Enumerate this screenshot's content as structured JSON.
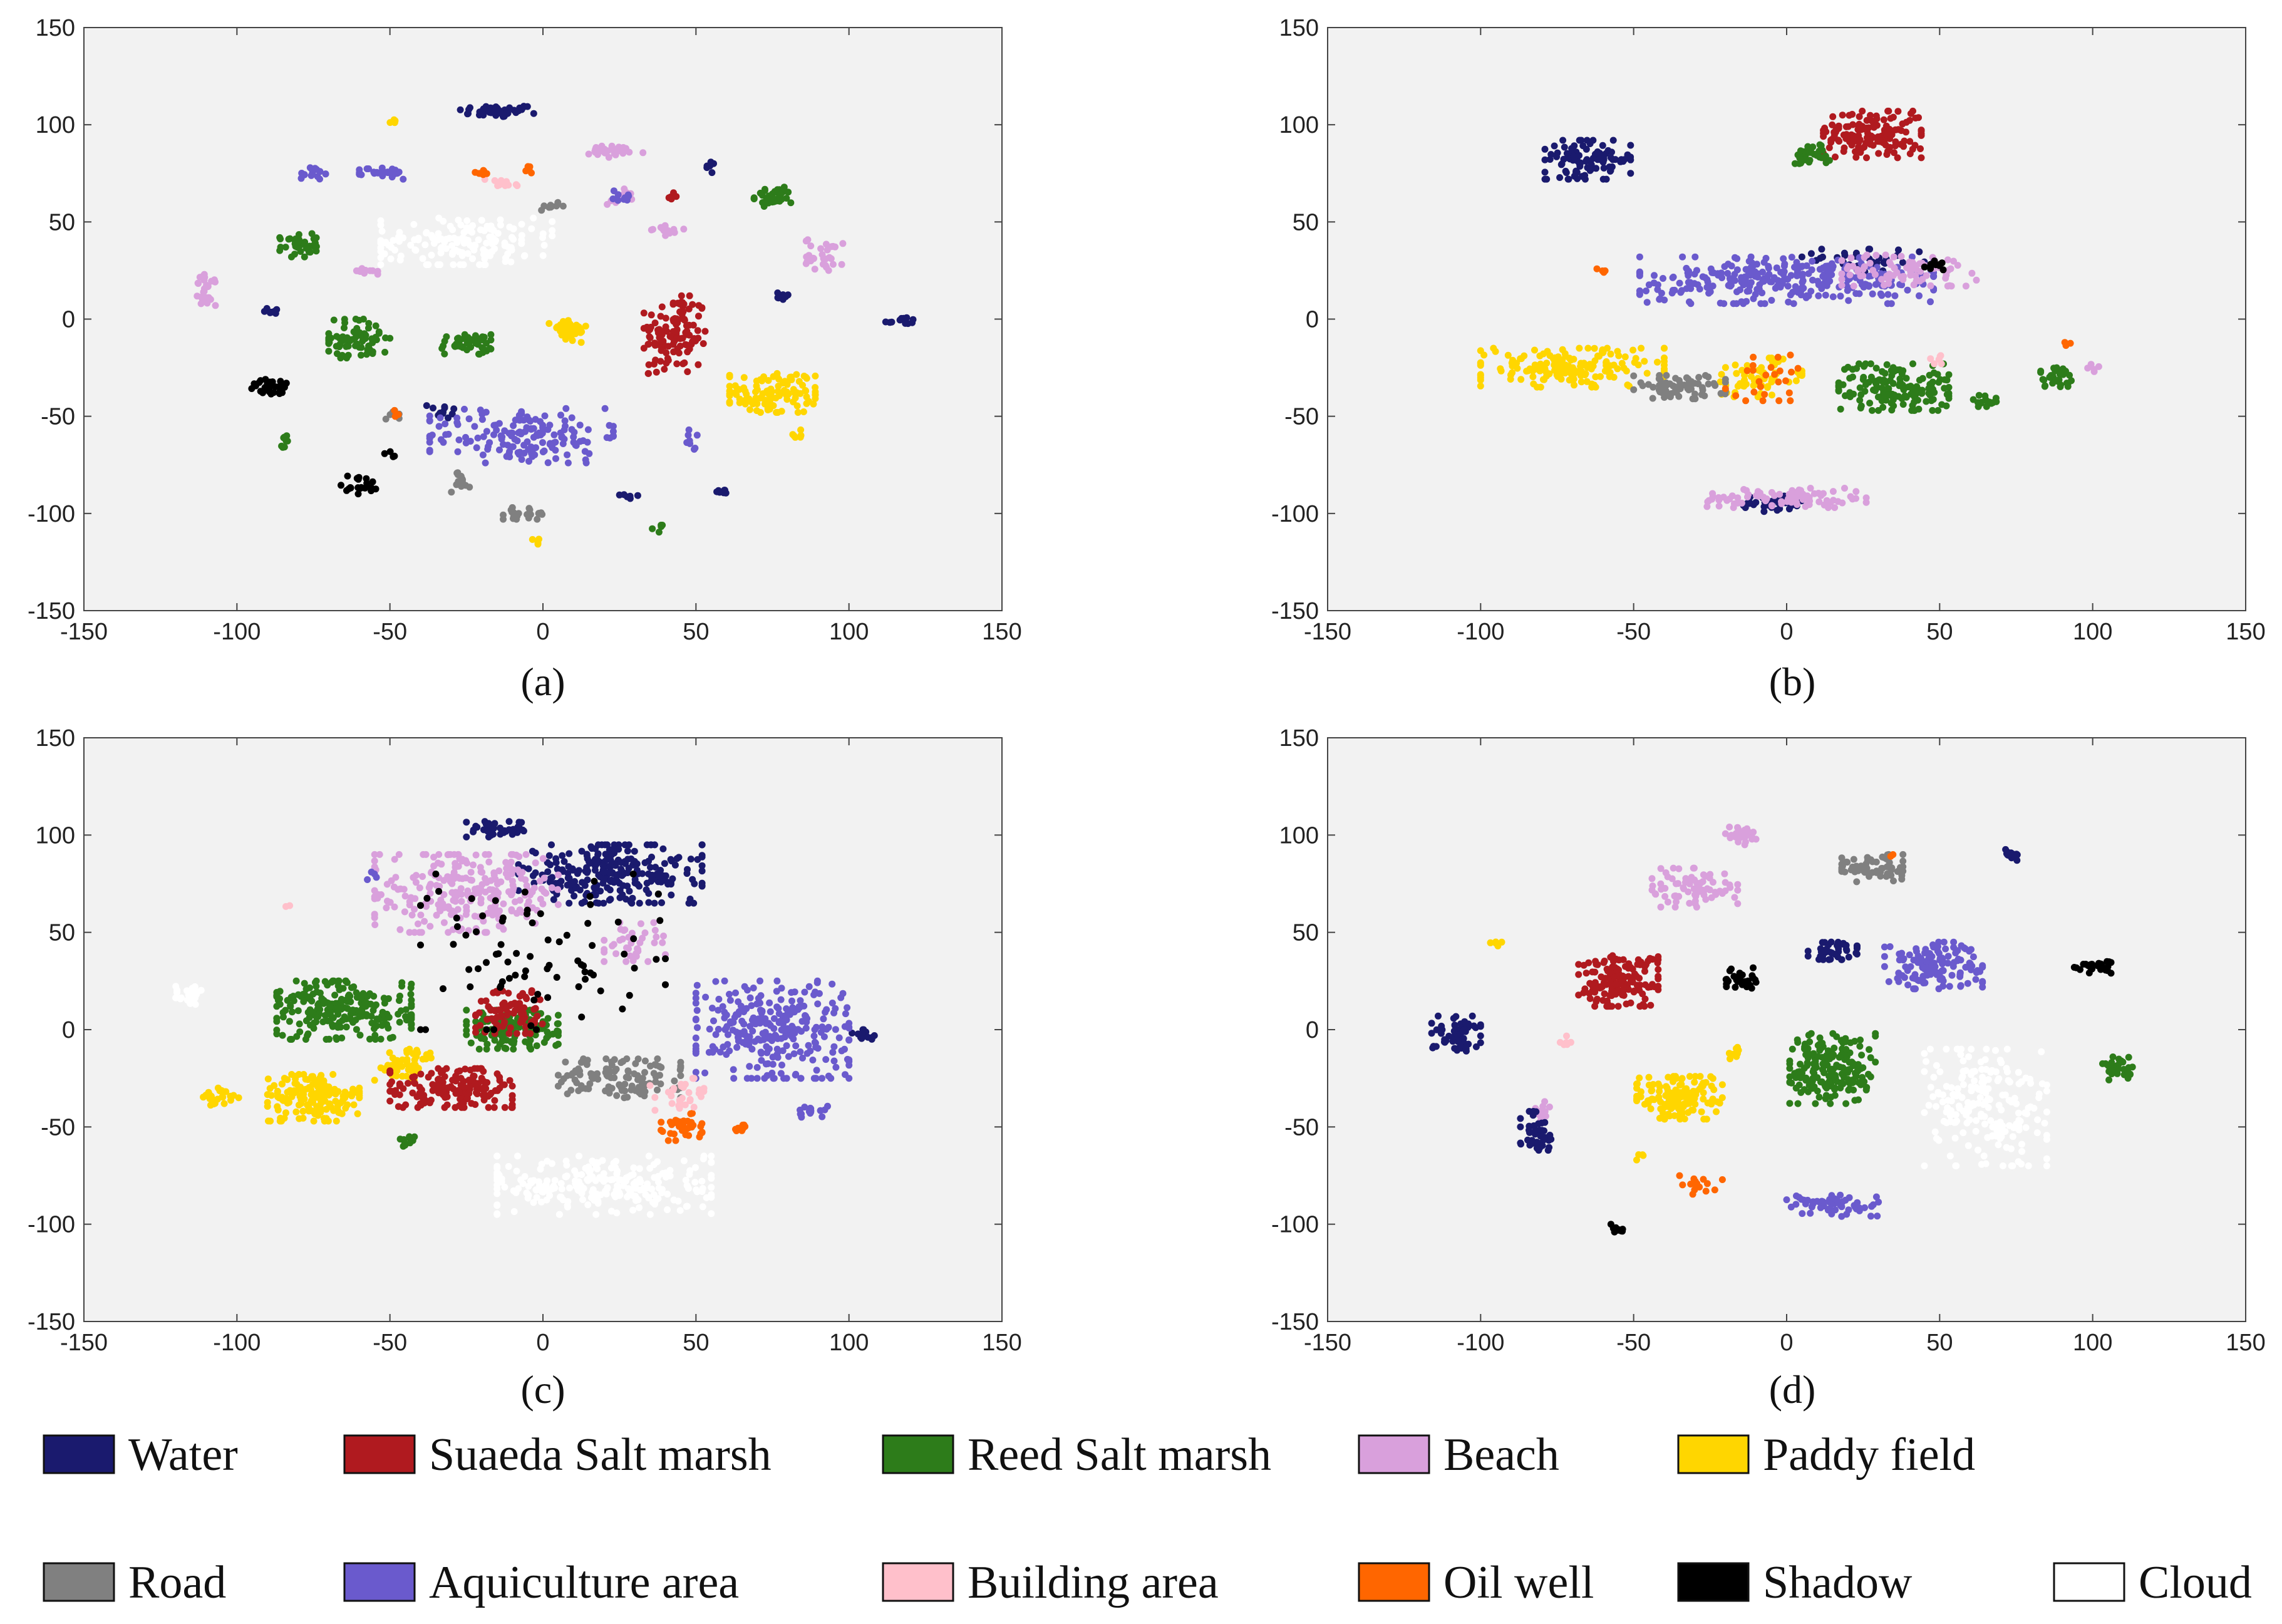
{
  "chart_data": [
    {
      "type": "scatter",
      "title": "",
      "panel_label": "(a)",
      "xlim": [
        -150,
        150
      ],
      "ylim": [
        -150,
        150
      ],
      "xticks": [
        "-150",
        "-100",
        "-50",
        "0",
        "50",
        "100",
        "150"
      ],
      "yticks": [
        "150",
        "100",
        "50",
        "0",
        "-50",
        "-100",
        "-150"
      ],
      "clusters": [
        {
          "cls": "water",
          "cx": -15,
          "cy": 107,
          "rx": 12,
          "ry": 3,
          "n": 45
        },
        {
          "cls": "water",
          "cx": 55,
          "cy": 78,
          "rx": 2,
          "ry": 3,
          "n": 8
        },
        {
          "cls": "water",
          "cx": -88,
          "cy": 4,
          "rx": 3,
          "ry": 2,
          "n": 8
        },
        {
          "cls": "water",
          "cx": 78,
          "cy": 12,
          "rx": 3,
          "ry": 2,
          "n": 8
        },
        {
          "cls": "water",
          "cx": 117,
          "cy": -1,
          "rx": 5,
          "ry": 2,
          "n": 12
        },
        {
          "cls": "water",
          "cx": -33,
          "cy": -47,
          "rx": 5,
          "ry": 4,
          "n": 12
        },
        {
          "cls": "water",
          "cx": 28,
          "cy": -91,
          "rx": 3,
          "ry": 2,
          "n": 8
        },
        {
          "cls": "water",
          "cx": 58,
          "cy": -89,
          "rx": 3,
          "ry": 2,
          "n": 8
        },
        {
          "cls": "suaeda",
          "cx": 43,
          "cy": -8,
          "rx": 10,
          "ry": 20,
          "n": 120
        },
        {
          "cls": "suaeda",
          "cx": 42,
          "cy": 63,
          "rx": 2,
          "ry": 2,
          "n": 6
        },
        {
          "cls": "reed",
          "cx": -80,
          "cy": 38,
          "rx": 6,
          "ry": 6,
          "n": 40
        },
        {
          "cls": "reed",
          "cx": -60,
          "cy": -10,
          "rx": 10,
          "ry": 10,
          "n": 70
        },
        {
          "cls": "reed",
          "cx": -25,
          "cy": -13,
          "rx": 8,
          "ry": 5,
          "n": 45
        },
        {
          "cls": "reed",
          "cx": 75,
          "cy": 63,
          "rx": 6,
          "ry": 5,
          "n": 40
        },
        {
          "cls": "reed",
          "cx": -84,
          "cy": -63,
          "rx": 2,
          "ry": 3,
          "n": 8
        },
        {
          "cls": "reed",
          "cx": 37,
          "cy": -108,
          "rx": 2,
          "ry": 2,
          "n": 5
        },
        {
          "cls": "beach",
          "cx": -110,
          "cy": 15,
          "rx": 3,
          "ry": 8,
          "n": 28
        },
        {
          "cls": "beach",
          "cx": 23,
          "cy": 86,
          "rx": 10,
          "ry": 3,
          "n": 30
        },
        {
          "cls": "beach",
          "cx": 40,
          "cy": 46,
          "rx": 6,
          "ry": 3,
          "n": 15
        },
        {
          "cls": "beach",
          "cx": 92,
          "cy": 33,
          "rx": 6,
          "ry": 8,
          "n": 30
        },
        {
          "cls": "beach",
          "cx": -58,
          "cy": 24,
          "rx": 4,
          "ry": 2,
          "n": 10
        },
        {
          "cls": "beach",
          "cx": 25,
          "cy": 63,
          "rx": 4,
          "ry": 4,
          "n": 12
        },
        {
          "cls": "paddy",
          "cx": 75,
          "cy": -38,
          "rx": 14,
          "ry": 10,
          "n": 110
        },
        {
          "cls": "paddy",
          "cx": 8,
          "cy": -6,
          "rx": 6,
          "ry": 6,
          "n": 40
        },
        {
          "cls": "paddy",
          "cx": -49,
          "cy": 101,
          "rx": 2,
          "ry": 2,
          "n": 4
        },
        {
          "cls": "paddy",
          "cx": 83,
          "cy": -59,
          "rx": 3,
          "ry": 2,
          "n": 6
        },
        {
          "cls": "paddy",
          "cx": -2,
          "cy": -114,
          "rx": 2,
          "ry": 2,
          "n": 4
        },
        {
          "cls": "road",
          "cx": -27,
          "cy": -84,
          "rx": 3,
          "ry": 5,
          "n": 18
        },
        {
          "cls": "road",
          "cx": -6,
          "cy": -100,
          "rx": 7,
          "ry": 3,
          "n": 25
        },
        {
          "cls": "road",
          "cx": 3,
          "cy": 58,
          "rx": 4,
          "ry": 2,
          "n": 10
        },
        {
          "cls": "road",
          "cx": -50,
          "cy": -50,
          "rx": 3,
          "ry": 3,
          "n": 8
        },
        {
          "cls": "aqui",
          "cx": -7,
          "cy": -60,
          "rx": 30,
          "ry": 14,
          "n": 160
        },
        {
          "cls": "aqui",
          "cx": -75,
          "cy": 75,
          "rx": 4,
          "ry": 3,
          "n": 15
        },
        {
          "cls": "aqui",
          "cx": -52,
          "cy": 75,
          "rx": 8,
          "ry": 3,
          "n": 28
        },
        {
          "cls": "aqui",
          "cx": 25,
          "cy": 63,
          "rx": 4,
          "ry": 4,
          "n": 10
        },
        {
          "cls": "aqui",
          "cx": 49,
          "cy": -62,
          "rx": 2,
          "ry": 5,
          "n": 8
        },
        {
          "cls": "building",
          "cx": -13,
          "cy": 70,
          "rx": 6,
          "ry": 3,
          "n": 12
        },
        {
          "cls": "oil",
          "cx": -20,
          "cy": 75,
          "rx": 3,
          "ry": 2,
          "n": 8
        },
        {
          "cls": "oil",
          "cx": -5,
          "cy": 77,
          "rx": 2,
          "ry": 2,
          "n": 6
        },
        {
          "cls": "oil",
          "cx": -48,
          "cy": -49,
          "rx": 2,
          "ry": 2,
          "n": 3
        },
        {
          "cls": "shadow",
          "cx": -88,
          "cy": -35,
          "rx": 8,
          "ry": 4,
          "n": 30
        },
        {
          "cls": "shadow",
          "cx": -60,
          "cy": -85,
          "rx": 6,
          "ry": 5,
          "n": 20
        },
        {
          "cls": "shadow",
          "cx": -50,
          "cy": -70,
          "rx": 2,
          "ry": 2,
          "n": 4
        },
        {
          "cls": "cloud",
          "cx": -25,
          "cy": 40,
          "rx": 28,
          "ry": 12,
          "n": 160
        }
      ]
    },
    {
      "type": "scatter",
      "title": "",
      "panel_label": "(b)",
      "xlim": [
        -150,
        150
      ],
      "ylim": [
        -150,
        150
      ],
      "xticks": [
        "-150",
        "-100",
        "-50",
        "0",
        "50",
        "100",
        "150"
      ],
      "yticks": [
        "150",
        "100",
        "50",
        "0",
        "-50",
        "-100",
        "-150"
      ],
      "clusters": [
        {
          "cls": "water",
          "cx": -65,
          "cy": 82,
          "rx": 14,
          "ry": 10,
          "n": 100
        },
        {
          "cls": "water",
          "cx": 25,
          "cy": 30,
          "rx": 20,
          "ry": 6,
          "n": 40
        },
        {
          "cls": "water",
          "cx": -5,
          "cy": -95,
          "rx": 10,
          "ry": 4,
          "n": 40
        },
        {
          "cls": "suaeda",
          "cx": 28,
          "cy": 95,
          "rx": 16,
          "ry": 12,
          "n": 150
        },
        {
          "cls": "reed",
          "cx": 8,
          "cy": 85,
          "rx": 6,
          "ry": 5,
          "n": 30
        },
        {
          "cls": "reed",
          "cx": 35,
          "cy": -35,
          "rx": 18,
          "ry": 12,
          "n": 160
        },
        {
          "cls": "reed",
          "cx": 88,
          "cy": -30,
          "rx": 5,
          "ry": 5,
          "n": 35
        },
        {
          "cls": "reed",
          "cx": 65,
          "cy": -42,
          "rx": 4,
          "ry": 3,
          "n": 15
        },
        {
          "cls": "aqui",
          "cx": 0,
          "cy": 20,
          "rx": 48,
          "ry": 12,
          "n": 300
        },
        {
          "cls": "beach",
          "cx": 40,
          "cy": 25,
          "rx": 22,
          "ry": 8,
          "n": 80
        },
        {
          "cls": "beach",
          "cx": 0,
          "cy": -92,
          "rx": 26,
          "ry": 5,
          "n": 90
        },
        {
          "cls": "beach",
          "cx": 100,
          "cy": -25,
          "rx": 2,
          "ry": 2,
          "n": 5
        },
        {
          "cls": "paddy",
          "cx": -70,
          "cy": -25,
          "rx": 30,
          "ry": 10,
          "n": 170
        },
        {
          "cls": "paddy",
          "cx": -10,
          "cy": -30,
          "rx": 15,
          "ry": 10,
          "n": 60
        },
        {
          "cls": "road",
          "cx": -35,
          "cy": -35,
          "rx": 15,
          "ry": 6,
          "n": 70
        },
        {
          "cls": "oil",
          "cx": -5,
          "cy": -30,
          "rx": 15,
          "ry": 12,
          "n": 25
        },
        {
          "cls": "oil",
          "cx": -60,
          "cy": 25,
          "rx": 2,
          "ry": 2,
          "n": 4
        },
        {
          "cls": "oil",
          "cx": 92,
          "cy": -13,
          "rx": 2,
          "ry": 1,
          "n": 4
        },
        {
          "cls": "building",
          "cx": 50,
          "cy": -20,
          "rx": 3,
          "ry": 3,
          "n": 6
        },
        {
          "cls": "shadow",
          "cx": 48,
          "cy": 28,
          "rx": 5,
          "ry": 4,
          "n": 12
        }
      ]
    },
    {
      "type": "scatter",
      "title": "",
      "panel_label": "(c)",
      "xlim": [
        -150,
        150
      ],
      "ylim": [
        -150,
        150
      ],
      "xticks": [
        "-150",
        "-100",
        "-50",
        "0",
        "50",
        "100",
        "150"
      ],
      "yticks": [
        "150",
        "100",
        "50",
        "0",
        "-50",
        "-100",
        "-150"
      ],
      "clusters": [
        {
          "cls": "water",
          "cx": 22,
          "cy": 80,
          "rx": 30,
          "ry": 15,
          "n": 250
        },
        {
          "cls": "water",
          "cx": -15,
          "cy": 103,
          "rx": 10,
          "ry": 4,
          "n": 40
        },
        {
          "cls": "water",
          "cx": 105,
          "cy": -3,
          "rx": 4,
          "ry": 3,
          "n": 15
        },
        {
          "cls": "beach",
          "cx": -25,
          "cy": 70,
          "rx": 30,
          "ry": 20,
          "n": 260
        },
        {
          "cls": "beach",
          "cx": 30,
          "cy": 45,
          "rx": 10,
          "ry": 10,
          "n": 40
        },
        {
          "cls": "aqui",
          "cx": 75,
          "cy": 0,
          "rx": 25,
          "ry": 25,
          "n": 280
        },
        {
          "cls": "aqui",
          "cx": 88,
          "cy": -42,
          "rx": 5,
          "ry": 3,
          "n": 15
        },
        {
          "cls": "aqui",
          "cx": -56,
          "cy": 79,
          "rx": 2,
          "ry": 2,
          "n": 4
        },
        {
          "cls": "reed",
          "cx": -65,
          "cy": 10,
          "rx": 22,
          "ry": 15,
          "n": 240
        },
        {
          "cls": "reed",
          "cx": -10,
          "cy": 0,
          "rx": 15,
          "ry": 10,
          "n": 140
        },
        {
          "cls": "reed",
          "cx": -45,
          "cy": -58,
          "rx": 3,
          "ry": 3,
          "n": 10
        },
        {
          "cls": "paddy",
          "cx": -75,
          "cy": -35,
          "rx": 15,
          "ry": 12,
          "n": 160
        },
        {
          "cls": "paddy",
          "cx": -105,
          "cy": -35,
          "rx": 6,
          "ry": 5,
          "n": 25
        },
        {
          "cls": "paddy",
          "cx": -45,
          "cy": -18,
          "rx": 10,
          "ry": 8,
          "n": 50
        },
        {
          "cls": "suaeda",
          "cx": -30,
          "cy": -30,
          "rx": 20,
          "ry": 10,
          "n": 160
        },
        {
          "cls": "suaeda",
          "cx": -10,
          "cy": 10,
          "rx": 12,
          "ry": 12,
          "n": 80
        },
        {
          "cls": "road",
          "cx": 25,
          "cy": -25,
          "rx": 20,
          "ry": 10,
          "n": 120
        },
        {
          "cls": "oil",
          "cx": 45,
          "cy": -50,
          "rx": 7,
          "ry": 7,
          "n": 40
        },
        {
          "cls": "oil",
          "cx": 65,
          "cy": -50,
          "rx": 3,
          "ry": 2,
          "n": 8
        },
        {
          "cls": "building",
          "cx": 45,
          "cy": -35,
          "rx": 10,
          "ry": 10,
          "n": 30
        },
        {
          "cls": "building",
          "cx": -83,
          "cy": 63,
          "rx": 1,
          "ry": 1,
          "n": 2
        },
        {
          "cls": "shadow",
          "cx": 0,
          "cy": 40,
          "rx": 40,
          "ry": 40,
          "n": 80
        },
        {
          "cls": "cloud",
          "cx": 20,
          "cy": -80,
          "rx": 35,
          "ry": 15,
          "n": 250
        },
        {
          "cls": "cloud",
          "cx": -115,
          "cy": 18,
          "rx": 5,
          "ry": 5,
          "n": 25
        }
      ]
    },
    {
      "type": "scatter",
      "title": "",
      "panel_label": "(d)",
      "xlim": [
        -150,
        150
      ],
      "ylim": [
        -150,
        150
      ],
      "xticks": [
        "-150",
        "-100",
        "-50",
        "0",
        "50",
        "100",
        "150"
      ],
      "yticks": [
        "150",
        "100",
        "50",
        "0",
        "-50",
        "-100",
        "-150"
      ],
      "clusters": [
        {
          "cls": "beach",
          "cx": -15,
          "cy": 100,
          "rx": 5,
          "ry": 5,
          "n": 30
        },
        {
          "cls": "beach",
          "cx": -30,
          "cy": 73,
          "rx": 14,
          "ry": 10,
          "n": 80
        },
        {
          "cls": "beach",
          "cx": -80,
          "cy": -42,
          "rx": 3,
          "ry": 5,
          "n": 10
        },
        {
          "cls": "road",
          "cx": 28,
          "cy": 83,
          "rx": 10,
          "ry": 7,
          "n": 60
        },
        {
          "cls": "oil",
          "cx": 35,
          "cy": 90,
          "rx": 1,
          "ry": 1,
          "n": 2
        },
        {
          "cls": "water",
          "cx": 73,
          "cy": 90,
          "rx": 3,
          "ry": 3,
          "n": 15
        },
        {
          "cls": "water",
          "cx": 15,
          "cy": 41,
          "rx": 8,
          "ry": 5,
          "n": 40
        },
        {
          "cls": "water",
          "cx": -108,
          "cy": -2,
          "rx": 8,
          "ry": 9,
          "n": 60
        },
        {
          "cls": "water",
          "cx": -82,
          "cy": -52,
          "rx": 5,
          "ry": 10,
          "n": 45
        },
        {
          "cls": "aqui",
          "cx": 48,
          "cy": 33,
          "rx": 16,
          "ry": 12,
          "n": 130
        },
        {
          "cls": "aqui",
          "cx": 15,
          "cy": -90,
          "rx": 15,
          "ry": 6,
          "n": 60
        },
        {
          "cls": "suaeda",
          "cx": -55,
          "cy": 25,
          "rx": 13,
          "ry": 13,
          "n": 150
        },
        {
          "cls": "paddy",
          "cx": -95,
          "cy": 44,
          "rx": 2,
          "ry": 2,
          "n": 5
        },
        {
          "cls": "paddy",
          "cx": -35,
          "cy": -35,
          "rx": 14,
          "ry": 11,
          "n": 140
        },
        {
          "cls": "paddy",
          "cx": -18,
          "cy": -12,
          "rx": 3,
          "ry": 3,
          "n": 10
        },
        {
          "cls": "paddy",
          "cx": -48,
          "cy": -65,
          "rx": 2,
          "ry": 2,
          "n": 4
        },
        {
          "cls": "shadow",
          "cx": -15,
          "cy": 25,
          "rx": 5,
          "ry": 7,
          "n": 30
        },
        {
          "cls": "shadow",
          "cx": 100,
          "cy": 32,
          "rx": 6,
          "ry": 3,
          "n": 25
        },
        {
          "cls": "shadow",
          "cx": -55,
          "cy": -102,
          "rx": 3,
          "ry": 2,
          "n": 10
        },
        {
          "cls": "reed",
          "cx": 15,
          "cy": -20,
          "rx": 14,
          "ry": 18,
          "n": 200
        },
        {
          "cls": "reed",
          "cx": 108,
          "cy": -20,
          "rx": 5,
          "ry": 6,
          "n": 30
        },
        {
          "cls": "building",
          "cx": -72,
          "cy": -6,
          "rx": 2,
          "ry": 3,
          "n": 6
        },
        {
          "cls": "oil",
          "cx": -28,
          "cy": -80,
          "rx": 7,
          "ry": 5,
          "n": 15
        },
        {
          "cls": "cloud",
          "cx": 65,
          "cy": -40,
          "rx": 20,
          "ry": 30,
          "n": 200
        }
      ]
    }
  ],
  "classes": [
    {
      "id": "water",
      "label": "Water",
      "color": "#1a1a6e"
    },
    {
      "id": "suaeda",
      "label": "Suaeda Salt marsh",
      "color": "#b01a1f"
    },
    {
      "id": "reed",
      "label": "Reed Salt marsh",
      "color": "#2d7c1a"
    },
    {
      "id": "beach",
      "label": "Beach",
      "color": "#d9a0dc"
    },
    {
      "id": "paddy",
      "label": "Paddy field",
      "color": "#ffd600"
    },
    {
      "id": "road",
      "label": "Road",
      "color": "#808080"
    },
    {
      "id": "aqui",
      "label": "Aquiculture area",
      "color": "#6a5acd"
    },
    {
      "id": "building",
      "label": "Building area",
      "color": "#ffc0cb"
    },
    {
      "id": "oil",
      "label": "Oil well",
      "color": "#ff6600"
    },
    {
      "id": "shadow",
      "label": "Shadow",
      "color": "#000000"
    },
    {
      "id": "cloud",
      "label": "Cloud",
      "color": "#ffffff"
    }
  ],
  "plot_background": "#f2f2f2"
}
